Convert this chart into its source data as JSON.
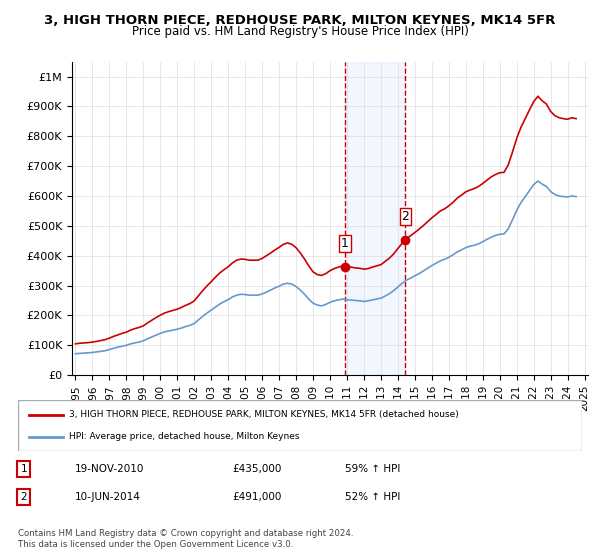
{
  "title": "3, HIGH THORN PIECE, REDHOUSE PARK, MILTON KEYNES, MK14 5FR",
  "subtitle": "Price paid vs. HM Land Registry's House Price Index (HPI)",
  "title_fontsize": 10.5,
  "subtitle_fontsize": 9.5,
  "ylabel": "",
  "ylim": [
    0,
    1050000
  ],
  "yticks": [
    0,
    100000,
    200000,
    300000,
    400000,
    500000,
    600000,
    700000,
    800000,
    900000,
    1000000
  ],
  "ytick_labels": [
    "£0",
    "£100K",
    "£200K",
    "£300K",
    "£400K",
    "£500K",
    "£600K",
    "£700K",
    "£800K",
    "£900K",
    "£1M"
  ],
  "red_color": "#cc0000",
  "blue_color": "#6699cc",
  "marker_color_red": "#cc0000",
  "marker_color_blue": "#6699cc",
  "dashed_line_color": "#cc0000",
  "shaded_color": "#cce0ff",
  "event1_x": 2010.89,
  "event2_x": 2014.44,
  "event1_label": "1",
  "event2_label": "2",
  "legend_line1": "3, HIGH THORN PIECE, REDHOUSE PARK, MILTON KEYNES, MK14 5FR (detached house)",
  "legend_line2": "HPI: Average price, detached house, Milton Keynes",
  "table_row1": [
    "1",
    "19-NOV-2010",
    "£435,000",
    "59% ↑ HPI"
  ],
  "table_row2": [
    "2",
    "10-JUN-2014",
    "£491,000",
    "52% ↑ HPI"
  ],
  "footnote": "Contains HM Land Registry data © Crown copyright and database right 2024.\nThis data is licensed under the Open Government Licence v3.0.",
  "hpi_data_x": [
    1995.0,
    1995.25,
    1995.5,
    1995.75,
    1996.0,
    1996.25,
    1996.5,
    1996.75,
    1997.0,
    1997.25,
    1997.5,
    1997.75,
    1998.0,
    1998.25,
    1998.5,
    1998.75,
    1999.0,
    1999.25,
    1999.5,
    1999.75,
    2000.0,
    2000.25,
    2000.5,
    2000.75,
    2001.0,
    2001.25,
    2001.5,
    2001.75,
    2002.0,
    2002.25,
    2002.5,
    2002.75,
    2003.0,
    2003.25,
    2003.5,
    2003.75,
    2004.0,
    2004.25,
    2004.5,
    2004.75,
    2005.0,
    2005.25,
    2005.5,
    2005.75,
    2006.0,
    2006.25,
    2006.5,
    2006.75,
    2007.0,
    2007.25,
    2007.5,
    2007.75,
    2008.0,
    2008.25,
    2008.5,
    2008.75,
    2009.0,
    2009.25,
    2009.5,
    2009.75,
    2010.0,
    2010.25,
    2010.5,
    2010.75,
    2011.0,
    2011.25,
    2011.5,
    2011.75,
    2012.0,
    2012.25,
    2012.5,
    2012.75,
    2013.0,
    2013.25,
    2013.5,
    2013.75,
    2014.0,
    2014.25,
    2014.5,
    2014.75,
    2015.0,
    2015.25,
    2015.5,
    2015.75,
    2016.0,
    2016.25,
    2016.5,
    2016.75,
    2017.0,
    2017.25,
    2017.5,
    2017.75,
    2018.0,
    2018.25,
    2018.5,
    2018.75,
    2019.0,
    2019.25,
    2019.5,
    2019.75,
    2020.0,
    2020.25,
    2020.5,
    2020.75,
    2021.0,
    2021.25,
    2021.5,
    2021.75,
    2022.0,
    2022.25,
    2022.5,
    2022.75,
    2023.0,
    2023.25,
    2023.5,
    2023.75,
    2024.0,
    2024.25,
    2024.5
  ],
  "hpi_data_y": [
    72000,
    73000,
    74000,
    75000,
    76000,
    78000,
    80000,
    82000,
    86000,
    90000,
    94000,
    97000,
    100000,
    105000,
    108000,
    111000,
    115000,
    122000,
    128000,
    134000,
    140000,
    145000,
    148000,
    151000,
    154000,
    158000,
    163000,
    167000,
    173000,
    185000,
    197000,
    208000,
    218000,
    228000,
    238000,
    246000,
    253000,
    262000,
    268000,
    271000,
    270000,
    268000,
    268000,
    268000,
    272000,
    278000,
    285000,
    292000,
    298000,
    305000,
    308000,
    305000,
    297000,
    285000,
    271000,
    255000,
    241000,
    235000,
    232000,
    237000,
    244000,
    249000,
    252000,
    255000,
    252000,
    252000,
    250000,
    249000,
    247000,
    249000,
    252000,
    255000,
    258000,
    265000,
    273000,
    283000,
    295000,
    308000,
    318000,
    325000,
    333000,
    340000,
    349000,
    358000,
    367000,
    375000,
    383000,
    388000,
    395000,
    403000,
    413000,
    420000,
    427000,
    432000,
    435000,
    440000,
    447000,
    455000,
    462000,
    468000,
    472000,
    473000,
    490000,
    520000,
    552000,
    578000,
    598000,
    618000,
    638000,
    650000,
    640000,
    632000,
    615000,
    605000,
    600000,
    598000,
    597000,
    600000,
    598000
  ],
  "price_data_x": [
    1995.0,
    1995.25,
    1995.5,
    1995.75,
    1996.0,
    1996.25,
    1996.5,
    1996.75,
    1997.0,
    1997.25,
    1997.5,
    1997.75,
    1998.0,
    1998.25,
    1998.5,
    1998.75,
    1999.0,
    1999.25,
    1999.5,
    1999.75,
    2000.0,
    2000.25,
    2000.5,
    2000.75,
    2001.0,
    2001.25,
    2001.5,
    2001.75,
    2002.0,
    2002.25,
    2002.5,
    2002.75,
    2003.0,
    2003.25,
    2003.5,
    2003.75,
    2004.0,
    2004.25,
    2004.5,
    2004.75,
    2005.0,
    2005.25,
    2005.5,
    2005.75,
    2006.0,
    2006.25,
    2006.5,
    2006.75,
    2007.0,
    2007.25,
    2007.5,
    2007.75,
    2008.0,
    2008.25,
    2008.5,
    2008.75,
    2009.0,
    2009.25,
    2009.5,
    2009.75,
    2010.0,
    2010.25,
    2010.5,
    2010.75,
    2011.0,
    2011.25,
    2011.5,
    2011.75,
    2012.0,
    2012.25,
    2012.5,
    2012.75,
    2013.0,
    2013.25,
    2013.5,
    2013.75,
    2014.0,
    2014.25,
    2014.5,
    2014.75,
    2015.0,
    2015.25,
    2015.5,
    2015.75,
    2016.0,
    2016.25,
    2016.5,
    2016.75,
    2017.0,
    2017.25,
    2017.5,
    2017.75,
    2018.0,
    2018.25,
    2018.5,
    2018.75,
    2019.0,
    2019.25,
    2019.5,
    2019.75,
    2020.0,
    2020.25,
    2020.5,
    2020.75,
    2021.0,
    2021.25,
    2021.5,
    2021.75,
    2022.0,
    2022.25,
    2022.5,
    2022.75,
    2023.0,
    2023.25,
    2023.5,
    2023.75,
    2024.0,
    2024.25,
    2024.5
  ],
  "price_data_y": [
    105000,
    107000,
    108000,
    109000,
    111000,
    113000,
    116000,
    119000,
    124000,
    130000,
    135000,
    140000,
    144000,
    151000,
    156000,
    160000,
    165000,
    175000,
    184000,
    193000,
    201000,
    208000,
    213000,
    217000,
    221000,
    227000,
    234000,
    240000,
    249000,
    266000,
    283000,
    299000,
    313000,
    328000,
    342000,
    353000,
    363000,
    376000,
    385000,
    389000,
    388000,
    385000,
    385000,
    385000,
    391000,
    400000,
    409000,
    419000,
    428000,
    438000,
    443000,
    438000,
    427000,
    409000,
    389000,
    366000,
    346000,
    337000,
    334000,
    340000,
    350000,
    357000,
    362000,
    366000,
    362000,
    362000,
    359000,
    358000,
    355000,
    357000,
    362000,
    366000,
    370000,
    381000,
    392000,
    406000,
    424000,
    442000,
    457000,
    467000,
    478000,
    489000,
    501000,
    514000,
    527000,
    538000,
    550000,
    557000,
    567000,
    579000,
    593000,
    603000,
    614000,
    620000,
    625000,
    632000,
    642000,
    653000,
    664000,
    672000,
    678000,
    679000,
    704000,
    747000,
    793000,
    830000,
    859000,
    888000,
    916000,
    934000,
    919000,
    908000,
    883000,
    869000,
    862000,
    859000,
    857000,
    862000,
    859000
  ],
  "xtick_years": [
    1995,
    1996,
    1997,
    1998,
    1999,
    2000,
    2001,
    2002,
    2003,
    2004,
    2005,
    2006,
    2007,
    2008,
    2009,
    2010,
    2011,
    2012,
    2013,
    2014,
    2015,
    2016,
    2017,
    2018,
    2019,
    2020,
    2021,
    2022,
    2023,
    2024,
    2025
  ],
  "xlim": [
    1994.8,
    2025.2
  ]
}
